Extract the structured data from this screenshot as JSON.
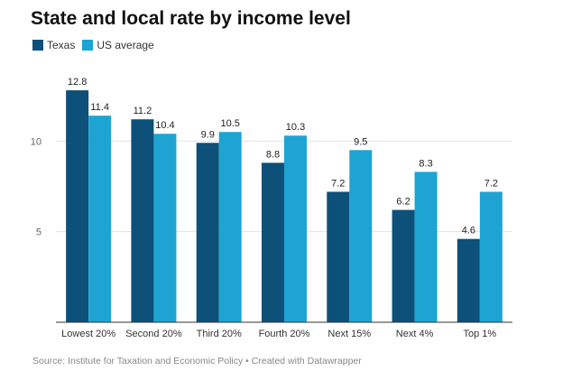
{
  "title": "State and local rate by income level",
  "source": "Source: Institute for Taxation and Economic Policy • Created with Datawrapper",
  "colors": {
    "texas": "#0d5079",
    "us": "#1ea4d3",
    "grid": "#e3e3e3",
    "axis": "#333333"
  },
  "chart_data": {
    "type": "bar",
    "title": "State and local rate by income level",
    "categories": [
      "Lowest 20%",
      "Second 20%",
      "Third 20%",
      "Fourth 20%",
      "Next 15%",
      "Next 4%",
      "Top 1%"
    ],
    "series": [
      {
        "name": "Texas",
        "values": [
          12.8,
          11.2,
          9.9,
          8.8,
          7.2,
          6.2,
          4.6
        ]
      },
      {
        "name": "US average",
        "values": [
          11.4,
          10.4,
          10.5,
          10.3,
          9.5,
          8.3,
          7.2
        ]
      }
    ],
    "yticks": [
      5,
      10
    ],
    "ylim": [
      0,
      13.6
    ],
    "grid": true,
    "legend": "top-left"
  }
}
